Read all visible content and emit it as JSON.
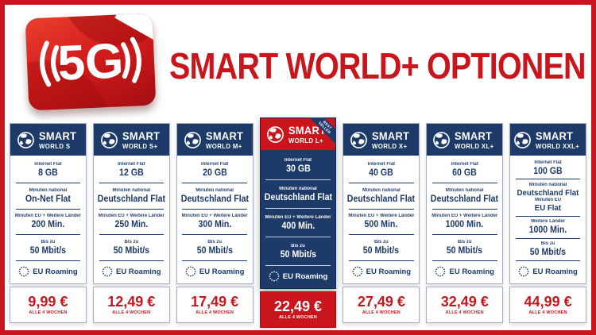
{
  "title": "SMART WORLD+ OPTIONEN",
  "logo": {
    "text": "5G"
  },
  "colors": {
    "brand_navy": "#1d3a68",
    "brand_red": "#c9161d",
    "frame_red": "#c8151e",
    "card_border": "#a3b0c4"
  },
  "cards": [
    {
      "id": "world-s",
      "brand": "SMART",
      "tier": "WORLD S",
      "highlighted": false,
      "ribbon": null,
      "sections": [
        [
          {
            "label": "Internet Flat",
            "value": "8 GB"
          }
        ],
        [
          {
            "label": "Minuten national",
            "value": "On-Net Flat"
          }
        ],
        [
          {
            "label": "Minuten EU + Weitere Länder",
            "value": "200 Min."
          }
        ],
        [
          {
            "label": "Bis zu",
            "value": "50 Mbit/s"
          }
        ]
      ],
      "roaming": "EU Roaming",
      "price": "9,99 €",
      "period": "ALLE 4 WOCHEN"
    },
    {
      "id": "world-s-plus",
      "brand": "SMART",
      "tier": "WORLD S+",
      "highlighted": false,
      "ribbon": null,
      "sections": [
        [
          {
            "label": "Internet Flat",
            "value": "12 GB"
          }
        ],
        [
          {
            "label": "Minuten national",
            "value": "Deutschland Flat"
          }
        ],
        [
          {
            "label": "Minuten EU + Weitere Länder",
            "value": "250 Min."
          }
        ],
        [
          {
            "label": "Bis zu",
            "value": "50 Mbit/s"
          }
        ]
      ],
      "roaming": "EU Roaming",
      "price": "12,49 €",
      "period": "ALLE 4 WOCHEN"
    },
    {
      "id": "world-m-plus",
      "brand": "SMART",
      "tier": "WORLD M+",
      "highlighted": false,
      "ribbon": null,
      "sections": [
        [
          {
            "label": "Internet Flat",
            "value": "20 GB"
          }
        ],
        [
          {
            "label": "Minuten national",
            "value": "Deutschland Flat"
          }
        ],
        [
          {
            "label": "Minuten EU + Weitere Länder",
            "value": "300 Min."
          }
        ],
        [
          {
            "label": "Bis zu",
            "value": "50 Mbit/s"
          }
        ]
      ],
      "roaming": "EU Roaming",
      "price": "17,49 €",
      "period": "ALLE 4 WOCHEN"
    },
    {
      "id": "world-l-plus",
      "brand": "SMART",
      "tier": "WORLD L+",
      "highlighted": true,
      "ribbon": "BEST SELLER",
      "sections": [
        [
          {
            "label": "Internet Flat",
            "value": "30 GB"
          }
        ],
        [
          {
            "label": "Minuten national",
            "value": "Deutschland Flat"
          }
        ],
        [
          {
            "label": "Minuten EU + Weitere Länder",
            "value": "400 Min."
          }
        ],
        [
          {
            "label": "Bis zu",
            "value": "50 Mbit/s"
          }
        ]
      ],
      "roaming": "EU Roaming",
      "price": "22,49 €",
      "period": "ALLE 4 WOCHEN"
    },
    {
      "id": "world-x-plus",
      "brand": "SMART",
      "tier": "WORLD X+",
      "highlighted": false,
      "ribbon": null,
      "sections": [
        [
          {
            "label": "Internet Flat",
            "value": "40 GB"
          }
        ],
        [
          {
            "label": "Minuten national",
            "value": "Deutschland Flat"
          }
        ],
        [
          {
            "label": "Minuten EU + Weitere Länder",
            "value": "500 Min."
          }
        ],
        [
          {
            "label": "Bis zu",
            "value": "50 Mbit/s"
          }
        ]
      ],
      "roaming": "EU Roaming",
      "price": "27,49 €",
      "period": "ALLE 4 WOCHEN"
    },
    {
      "id": "world-xl-plus",
      "brand": "SMART",
      "tier": "WORLD XL+",
      "highlighted": false,
      "ribbon": null,
      "sections": [
        [
          {
            "label": "Internet Flat",
            "value": "60 GB"
          }
        ],
        [
          {
            "label": "Minuten national",
            "value": "Deutschland Flat"
          }
        ],
        [
          {
            "label": "Minuten EU + Weitere Länder",
            "value": "1000 Min."
          }
        ],
        [
          {
            "label": "Bis zu",
            "value": "50 Mbit/s"
          }
        ]
      ],
      "roaming": "EU Roaming",
      "price": "32,49 €",
      "period": "ALLE 4 WOCHEN"
    },
    {
      "id": "world-xxl-plus",
      "brand": "SMART",
      "tier": "WORLD XXL+",
      "highlighted": false,
      "ribbon": null,
      "sections": [
        [
          {
            "label": "Internet Flat",
            "value": "100 GB"
          }
        ],
        [
          {
            "label": "Minuten national",
            "value": "Deutschland Flat"
          },
          {
            "label": "Minuten EU",
            "value": "EU Flat"
          }
        ],
        [
          {
            "label": "Weitere Länder",
            "value": "1000 Min."
          }
        ],
        [
          {
            "label": "Bis zu",
            "value": "50 Mbit/s"
          }
        ]
      ],
      "roaming": "EU Roaming",
      "price": "44,99 €",
      "period": "ALLE 4 WOCHEN"
    }
  ]
}
